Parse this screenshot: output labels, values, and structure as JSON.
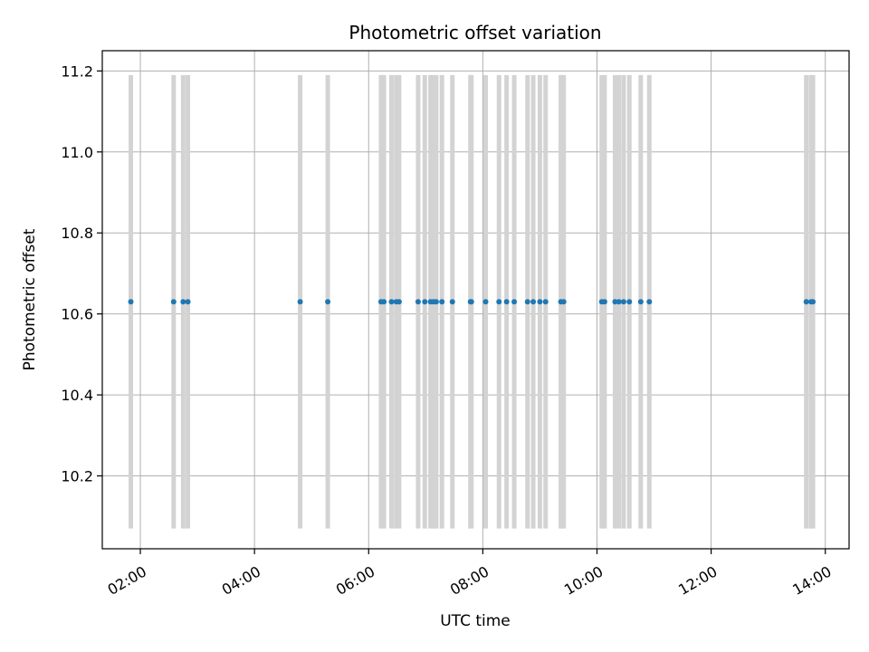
{
  "chart_data": {
    "type": "scatter",
    "title": "Photometric offset variation",
    "xlabel": "UTC time",
    "ylabel": "Photometric offset",
    "xlim": [
      "01:20",
      "14:25"
    ],
    "ylim": [
      10.02,
      11.25
    ],
    "x_ticks": [
      "02:00",
      "04:00",
      "06:00",
      "08:00",
      "10:00",
      "12:00",
      "14:00"
    ],
    "y_ticks": [
      10.2,
      10.4,
      10.6,
      10.8,
      11.0,
      11.2
    ],
    "grid": true,
    "colors": {
      "points": "#1f77b4",
      "bands": "#d3d3d3",
      "grid": "#b0b0b0"
    },
    "error_bar_range": [
      10.07,
      11.19
    ],
    "points": {
      "y": 10.63,
      "x": [
        "01:50",
        "02:35",
        "02:45",
        "02:50",
        "04:48",
        "05:17",
        "06:13",
        "06:16",
        "06:24",
        "06:29",
        "06:32",
        "06:52",
        "06:59",
        "07:05",
        "07:08",
        "07:11",
        "07:17",
        "07:28",
        "07:47",
        "07:48",
        "08:03",
        "08:17",
        "08:25",
        "08:33",
        "08:47",
        "08:53",
        "09:00",
        "09:06",
        "09:22",
        "09:25",
        "10:05",
        "10:08",
        "10:19",
        "10:23",
        "10:28",
        "10:34",
        "10:46",
        "10:55",
        "13:40",
        "13:45",
        "13:47"
      ]
    }
  }
}
